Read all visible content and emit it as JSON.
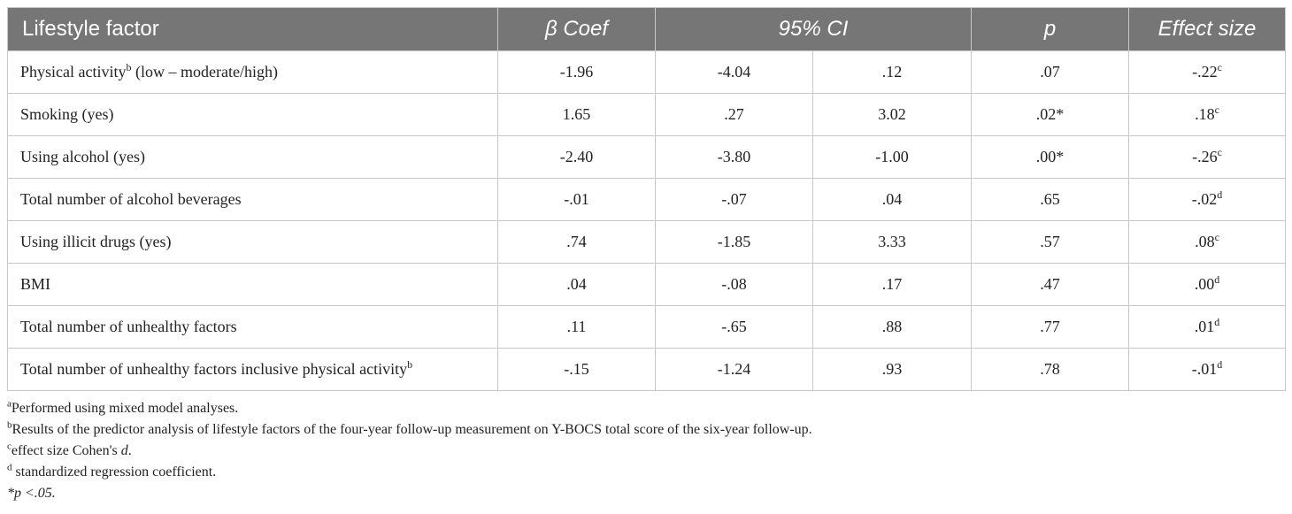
{
  "headers": {
    "factor": "Lifestyle factor",
    "beta": "β Coef",
    "ci": "95% CI",
    "p": "p",
    "effect": "Effect size"
  },
  "rows": [
    {
      "factor": "Physical activity",
      "factor_sup": "b",
      "factor_suffix": " (low – moderate/high)",
      "beta": "-1.96",
      "ci_low": "-4.04",
      "ci_high": ".12",
      "p": ".07",
      "effect": "-.22",
      "effect_sup": "c"
    },
    {
      "factor": "Smoking (yes)",
      "factor_sup": "",
      "factor_suffix": "",
      "beta": "1.65",
      "ci_low": ".27",
      "ci_high": "3.02",
      "p": ".02*",
      "effect": ".18",
      "effect_sup": "c"
    },
    {
      "factor": "Using alcohol (yes)",
      "factor_sup": "",
      "factor_suffix": "",
      "beta": "-2.40",
      "ci_low": "-3.80",
      "ci_high": "-1.00",
      "p": ".00*",
      "effect": "-.26",
      "effect_sup": "c"
    },
    {
      "factor": "Total number of alcohol beverages",
      "factor_sup": "",
      "factor_suffix": "",
      "beta": "-.01",
      "ci_low": "-.07",
      "ci_high": ".04",
      "p": ".65",
      "effect": "-.02",
      "effect_sup": "d"
    },
    {
      "factor": "Using illicit drugs (yes)",
      "factor_sup": "",
      "factor_suffix": "",
      "beta": ".74",
      "ci_low": "-1.85",
      "ci_high": "3.33",
      "p": ".57",
      "effect": ".08",
      "effect_sup": "c"
    },
    {
      "factor": "BMI",
      "factor_sup": "",
      "factor_suffix": "",
      "beta": ".04",
      "ci_low": "-.08",
      "ci_high": ".17",
      "p": ".47",
      "effect": ".00",
      "effect_sup": "d"
    },
    {
      "factor": "Total number of unhealthy factors",
      "factor_sup": "",
      "factor_suffix": "",
      "beta": ".11",
      "ci_low": "-.65",
      "ci_high": ".88",
      "p": ".77",
      "effect": ".01",
      "effect_sup": "d"
    },
    {
      "factor": "Total number of unhealthy factors inclusive physical activity",
      "factor_sup": "b",
      "factor_suffix": "",
      "beta": "-.15",
      "ci_low": "-1.24",
      "ci_high": ".93",
      "p": ".78",
      "effect": "-.01",
      "effect_sup": "d"
    }
  ],
  "footnotes": [
    {
      "mark": "a",
      "text": "Performed using mixed model analyses."
    },
    {
      "mark": "b",
      "text": "Results of the predictor analysis of lifestyle factors of the four-year follow-up measurement on Y-BOCS total score of the six-year follow-up."
    },
    {
      "mark": "c",
      "text": "effect size Cohen's ",
      "italic_tail": "d",
      "tail": "."
    },
    {
      "mark": "d",
      "text": " standardized regression coefficient."
    }
  ],
  "significance_note": "*p <.05."
}
